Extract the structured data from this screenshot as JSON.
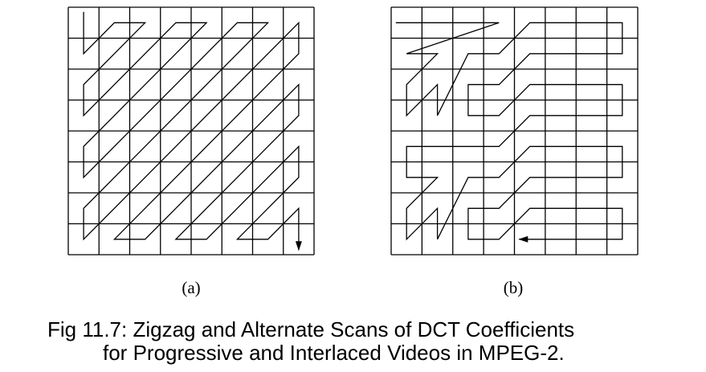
{
  "figure": {
    "panels": [
      {
        "label": "(a)",
        "scan": "zigzag",
        "grid_rows": 8,
        "grid_cols": 8,
        "path": [
          [
            0,
            0
          ],
          [
            0,
            1
          ],
          [
            1,
            0
          ],
          [
            2,
            0
          ],
          [
            1,
            1
          ],
          [
            0,
            2
          ],
          [
            0,
            3
          ],
          [
            1,
            2
          ],
          [
            2,
            1
          ],
          [
            3,
            0
          ],
          [
            4,
            0
          ],
          [
            3,
            1
          ],
          [
            2,
            2
          ],
          [
            1,
            3
          ],
          [
            0,
            4
          ],
          [
            0,
            5
          ],
          [
            1,
            4
          ],
          [
            2,
            3
          ],
          [
            3,
            2
          ],
          [
            4,
            1
          ],
          [
            5,
            0
          ],
          [
            6,
            0
          ],
          [
            5,
            1
          ],
          [
            4,
            2
          ],
          [
            3,
            3
          ],
          [
            2,
            4
          ],
          [
            1,
            5
          ],
          [
            0,
            6
          ],
          [
            0,
            7
          ],
          [
            1,
            6
          ],
          [
            2,
            5
          ],
          [
            3,
            4
          ],
          [
            4,
            3
          ],
          [
            5,
            2
          ],
          [
            6,
            1
          ],
          [
            7,
            0
          ],
          [
            7,
            1
          ],
          [
            6,
            2
          ],
          [
            5,
            3
          ],
          [
            4,
            4
          ],
          [
            3,
            5
          ],
          [
            2,
            6
          ],
          [
            1,
            7
          ],
          [
            2,
            7
          ],
          [
            3,
            6
          ],
          [
            4,
            5
          ],
          [
            5,
            4
          ],
          [
            6,
            3
          ],
          [
            7,
            2
          ],
          [
            7,
            3
          ],
          [
            6,
            4
          ],
          [
            5,
            5
          ],
          [
            4,
            6
          ],
          [
            3,
            7
          ],
          [
            4,
            7
          ],
          [
            5,
            6
          ],
          [
            6,
            5
          ],
          [
            7,
            4
          ],
          [
            7,
            5
          ],
          [
            6,
            6
          ],
          [
            5,
            7
          ],
          [
            6,
            7
          ],
          [
            7,
            6
          ],
          [
            7,
            7
          ]
        ]
      },
      {
        "label": "(b)",
        "scan": "alternate",
        "grid_rows": 8,
        "grid_cols": 8,
        "path": [
          [
            0,
            0
          ],
          [
            1,
            0
          ],
          [
            2,
            0
          ],
          [
            3,
            0
          ],
          [
            0,
            1
          ],
          [
            1,
            1
          ],
          [
            0,
            2
          ],
          [
            0,
            3
          ],
          [
            1,
            2
          ],
          [
            1,
            3
          ],
          [
            2,
            1
          ],
          [
            3,
            1
          ],
          [
            4,
            0
          ],
          [
            5,
            0
          ],
          [
            6,
            0
          ],
          [
            7,
            0
          ],
          [
            7,
            1
          ],
          [
            6,
            1
          ],
          [
            5,
            1
          ],
          [
            4,
            1
          ],
          [
            3,
            2
          ],
          [
            2,
            2
          ],
          [
            2,
            3
          ],
          [
            3,
            3
          ],
          [
            4,
            2
          ],
          [
            5,
            2
          ],
          [
            6,
            2
          ],
          [
            7,
            2
          ],
          [
            7,
            3
          ],
          [
            6,
            3
          ],
          [
            5,
            3
          ],
          [
            4,
            3
          ],
          [
            3,
            4
          ],
          [
            2,
            4
          ],
          [
            1,
            4
          ],
          [
            0,
            4
          ],
          [
            0,
            5
          ],
          [
            1,
            5
          ],
          [
            0,
            6
          ],
          [
            0,
            7
          ],
          [
            1,
            6
          ],
          [
            1,
            7
          ],
          [
            2,
            5
          ],
          [
            3,
            5
          ],
          [
            4,
            4
          ],
          [
            5,
            4
          ],
          [
            6,
            4
          ],
          [
            7,
            4
          ],
          [
            7,
            5
          ],
          [
            6,
            5
          ],
          [
            5,
            5
          ],
          [
            4,
            5
          ],
          [
            3,
            6
          ],
          [
            2,
            6
          ],
          [
            2,
            7
          ],
          [
            3,
            7
          ],
          [
            4,
            6
          ],
          [
            5,
            6
          ],
          [
            6,
            6
          ],
          [
            7,
            6
          ],
          [
            7,
            7
          ],
          [
            6,
            7
          ],
          [
            5,
            7
          ],
          [
            4,
            7
          ]
        ]
      }
    ]
  },
  "caption": {
    "line1": "Fig 11.7: Zigzag and Alternate Scans of DCT Coefficients",
    "line2": "for Progressive and Interlaced Videos in MPEG-2."
  }
}
